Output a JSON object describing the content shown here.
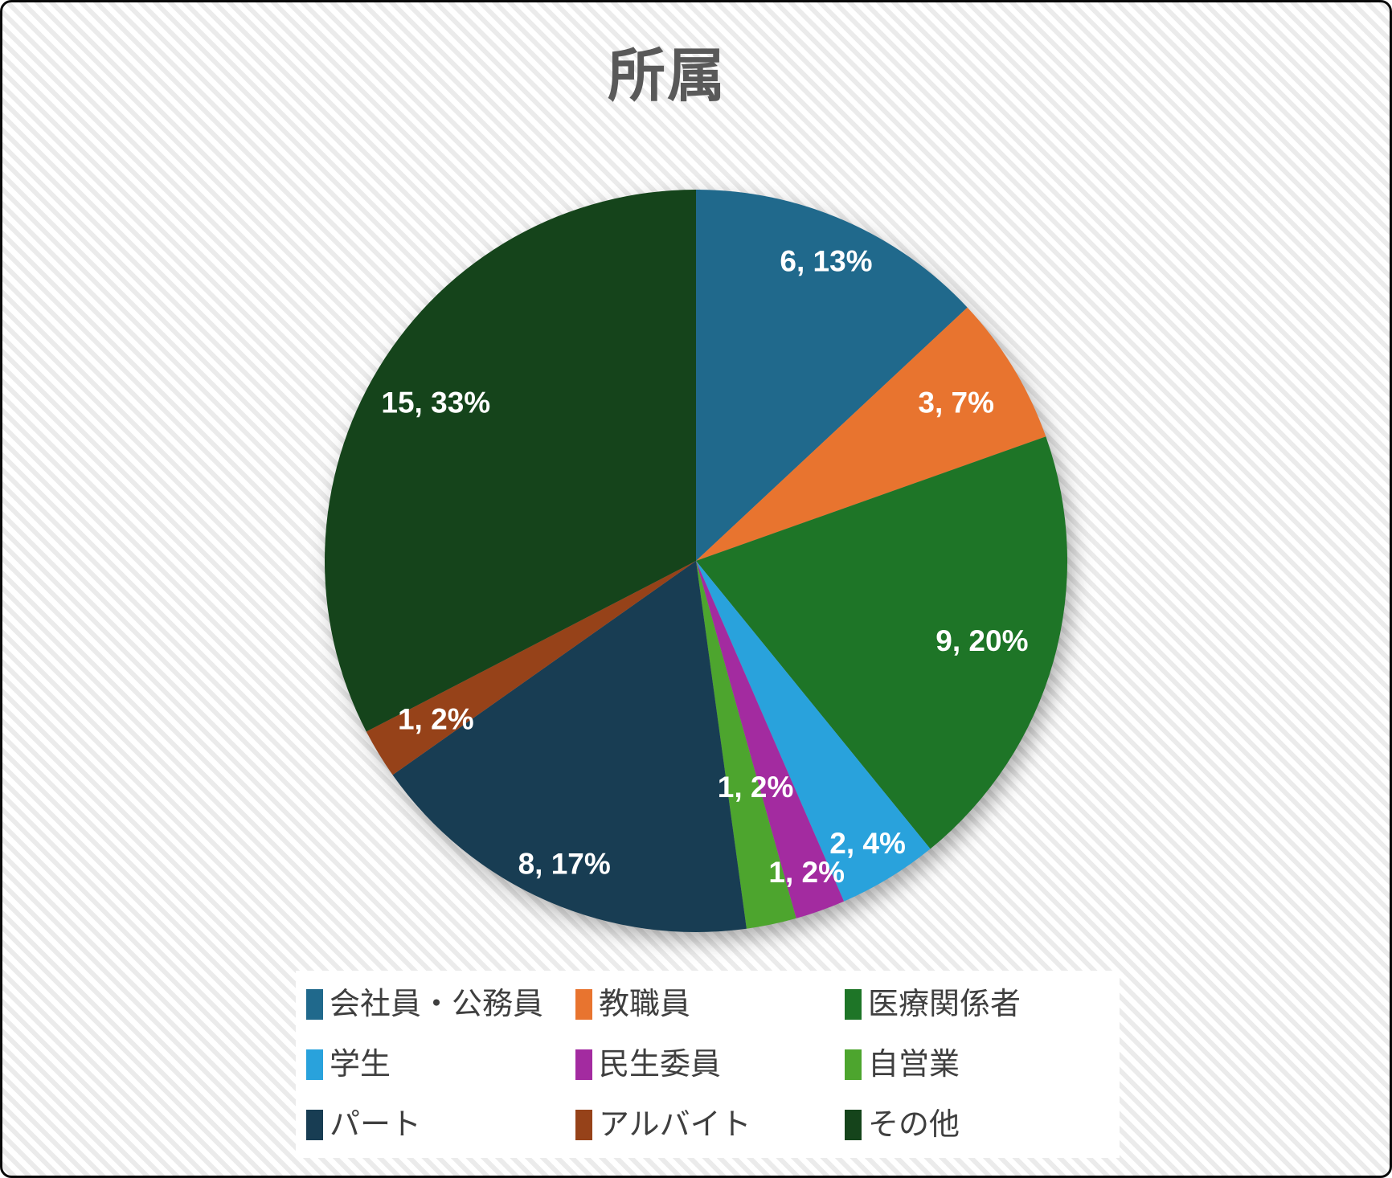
{
  "chart_data": {
    "type": "pie",
    "title": "所属",
    "legend_position": "bottom",
    "label_format": "value, percent",
    "total": 46,
    "slices": [
      {
        "label": "会社員・公務員",
        "value": 6,
        "percent": 13,
        "data_label": "6, 13%",
        "color": "#20698C"
      },
      {
        "label": "教職員",
        "value": 3,
        "percent": 7,
        "data_label": "3, 7%",
        "color": "#E8742F"
      },
      {
        "label": "医療関係者",
        "value": 9,
        "percent": 20,
        "data_label": "9, 20%",
        "color": "#1E7527"
      },
      {
        "label": "学生",
        "value": 2,
        "percent": 4,
        "data_label": "2, 4%",
        "color": "#29A2DC"
      },
      {
        "label": "民生委員",
        "value": 1,
        "percent": 2,
        "data_label": "1, 2%",
        "color": "#A32BA0"
      },
      {
        "label": "自営業",
        "value": 1,
        "percent": 2,
        "data_label": "1, 2%",
        "color": "#4DA52E"
      },
      {
        "label": "パート",
        "value": 8,
        "percent": 17,
        "data_label": "8, 17%",
        "color": "#183D53"
      },
      {
        "label": "アルバイト",
        "value": 1,
        "percent": 2,
        "data_label": "1, 2%",
        "color": "#964219"
      },
      {
        "label": "その他",
        "value": 15,
        "percent": 33,
        "data_label": "15, 33%",
        "color": "#15441B"
      }
    ]
  }
}
